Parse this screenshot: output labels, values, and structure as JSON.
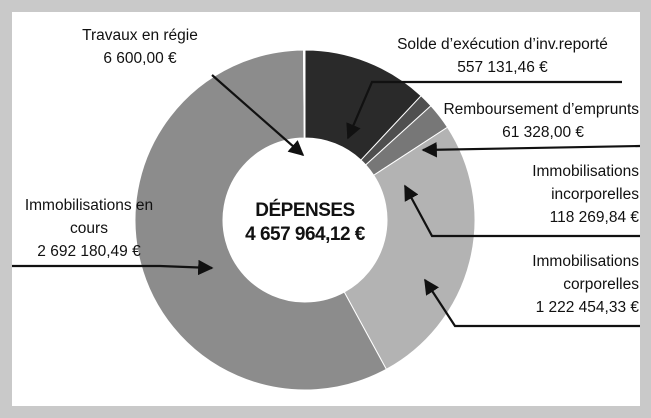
{
  "chart_data": {
    "type": "donut",
    "title": "DÉPENSES",
    "total_label": "4 657 964,12 €",
    "categories": [
      "Solde d’exécution d’inv.reporté",
      "Remboursement d’emprunts",
      "Immobilisations incorporelles",
      "Immobilisations corporelles",
      "Immobilisations en cours",
      "Travaux en régie"
    ],
    "values": [
      557131.46,
      61328.0,
      118269.84,
      1222454.33,
      2692180.49,
      6600.0
    ],
    "value_labels": [
      "557 131,46 €",
      "61 328,00 €",
      "118 269,84 €",
      "1 222 454,33 €",
      "2 692 180,49 €",
      "6 600,00 €"
    ],
    "colors": [
      "#2a2a2a",
      "#4f4f4f",
      "#777777",
      "#b3b3b3",
      "#8c8c8c",
      "#ffffff"
    ]
  }
}
